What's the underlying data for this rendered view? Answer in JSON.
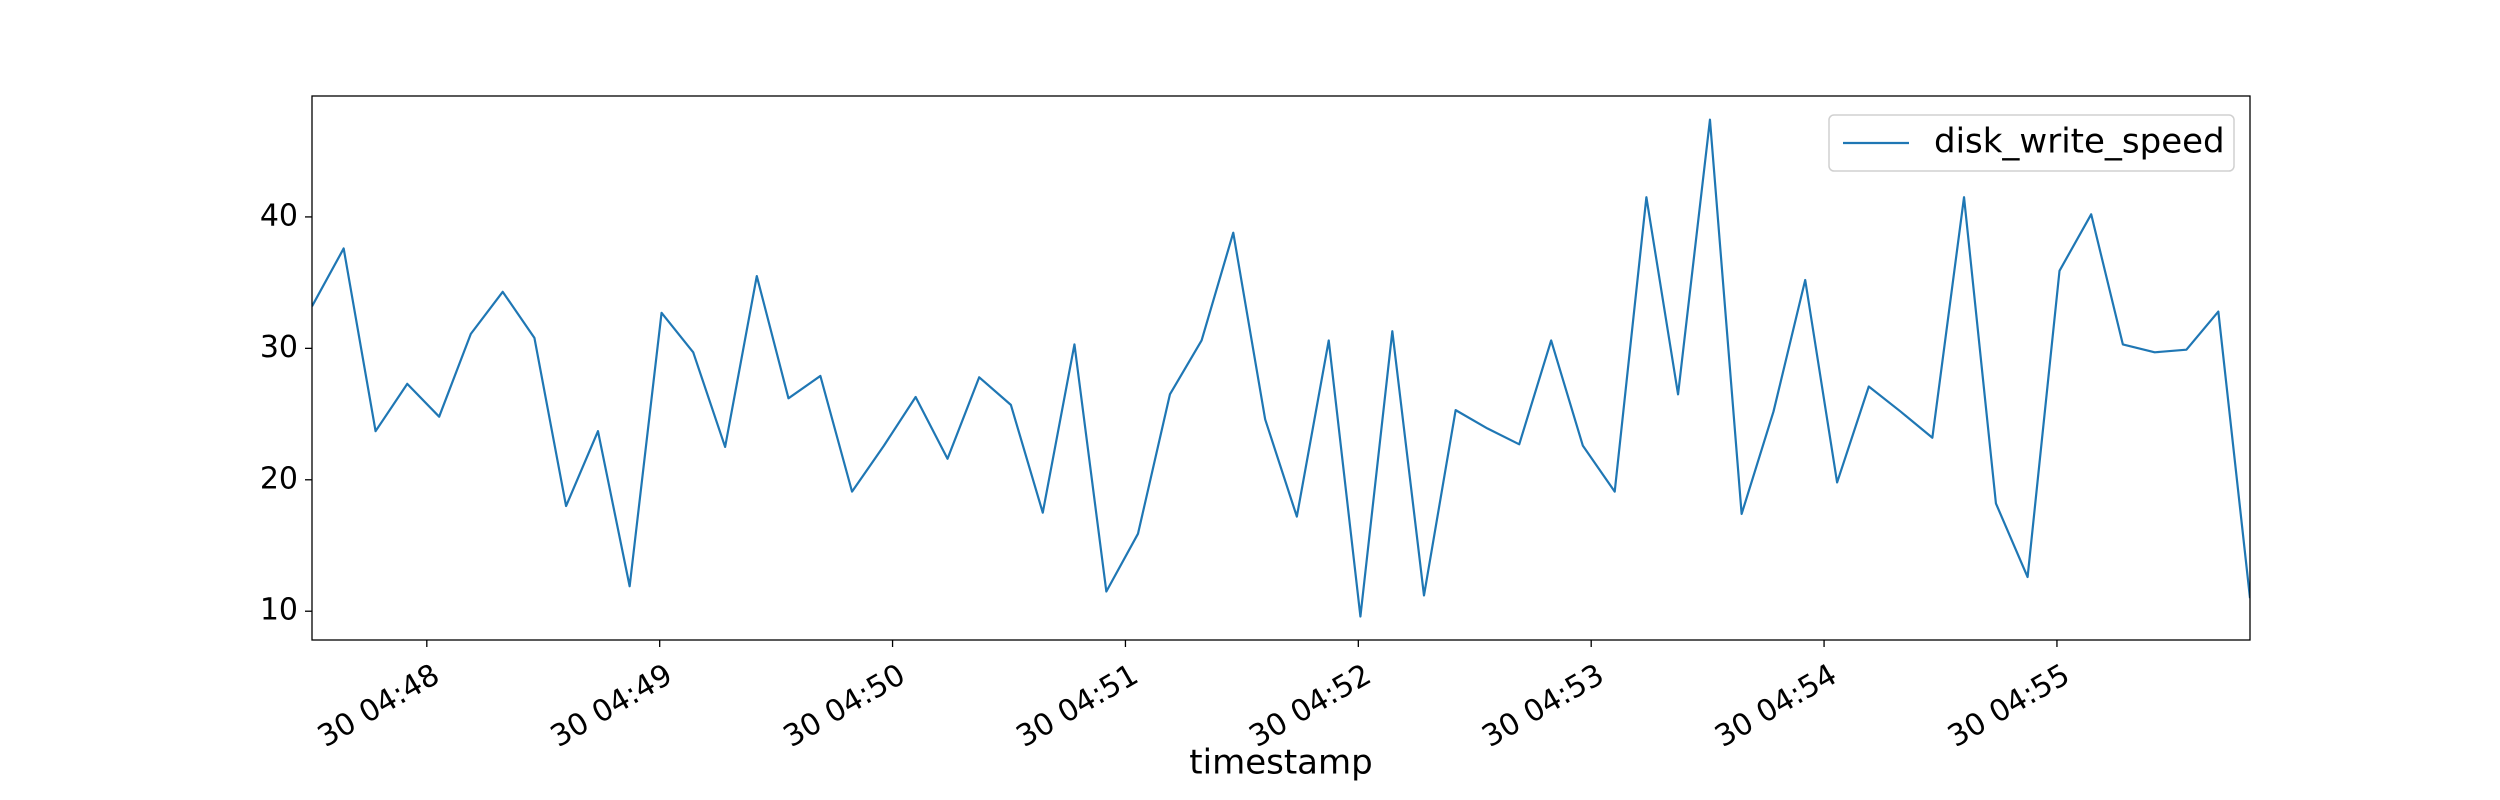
{
  "chart_data": {
    "type": "line",
    "xlabel": "timestamp",
    "x": [
      287.507,
      287.643,
      287.78,
      287.916,
      288.053,
      288.189,
      288.326,
      288.462,
      288.598,
      288.735,
      288.871,
      289.008,
      289.144,
      289.281,
      289.417,
      289.553,
      289.69,
      289.826,
      289.963,
      290.099,
      290.236,
      290.372,
      290.508,
      290.645,
      290.781,
      290.918,
      291.054,
      291.191,
      291.327,
      291.463,
      291.6,
      291.736,
      291.873,
      292.009,
      292.146,
      292.282,
      292.418,
      292.555,
      292.691,
      292.828,
      292.964,
      293.101,
      293.237,
      293.373,
      293.51,
      293.646,
      293.783,
      293.919,
      294.056,
      294.192,
      294.328,
      294.465,
      294.601,
      294.738,
      294.874,
      295.011,
      295.147,
      295.283,
      295.42,
      295.556,
      295.693,
      295.829
    ],
    "series": [
      {
        "name": "disk_write_speed",
        "color": "#1f77b4",
        "values": [
          33.2,
          37.6,
          23.7,
          27.3,
          24.8,
          31.1,
          34.3,
          30.8,
          18.0,
          23.7,
          11.9,
          32.7,
          29.7,
          22.5,
          35.5,
          26.2,
          27.9,
          19.1,
          22.6,
          26.3,
          21.6,
          27.8,
          25.7,
          17.5,
          30.3,
          11.5,
          15.9,
          26.5,
          30.6,
          38.8,
          24.6,
          17.2,
          30.6,
          9.6,
          31.3,
          11.2,
          25.3,
          23.9,
          22.7,
          30.6,
          22.6,
          19.1,
          41.5,
          26.5,
          47.4,
          17.4,
          25.2,
          35.2,
          19.8,
          27.1,
          25.2,
          23.2,
          41.5,
          18.2,
          12.6,
          35.9,
          40.2,
          30.3,
          29.7,
          29.9,
          32.8,
          11.0
        ]
      }
    ],
    "xlim": [
      287.507,
      295.829
    ],
    "xticks": [
      {
        "value": 288,
        "label": "30 04:48"
      },
      {
        "value": 289,
        "label": "30 04:49"
      },
      {
        "value": 290,
        "label": "30 04:50"
      },
      {
        "value": 291,
        "label": "30 04:51"
      },
      {
        "value": 292,
        "label": "30 04:52"
      },
      {
        "value": 293,
        "label": "30 04:53"
      },
      {
        "value": 294,
        "label": "30 04:54"
      },
      {
        "value": 295,
        "label": "30 04:55"
      }
    ],
    "ylim": [
      7.81,
      49.2
    ],
    "yticks": [
      10,
      20,
      30,
      40
    ],
    "legend": "upper right",
    "grid": false
  }
}
